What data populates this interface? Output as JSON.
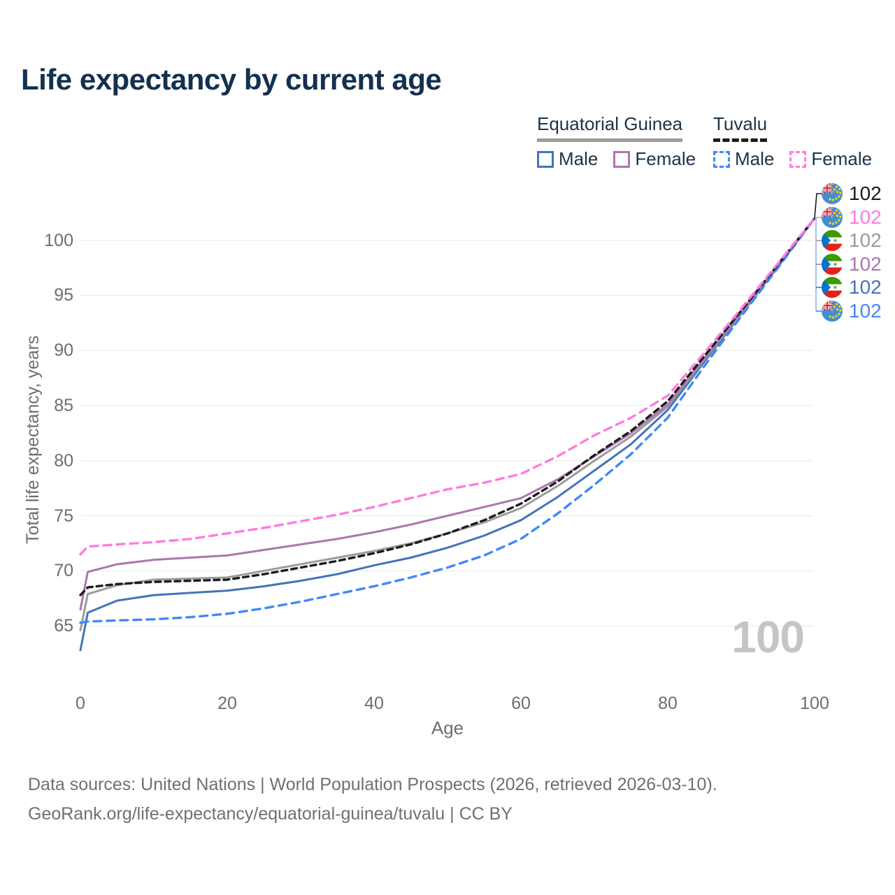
{
  "title": "Life expectancy by current age",
  "y_axis": {
    "label": "Total life expectancy, years"
  },
  "x_axis": {
    "label": "Age"
  },
  "legend": {
    "groups": [
      {
        "label": "Equatorial Guinea",
        "underline_style": "solid",
        "underline_color": "#9b9b9b",
        "items": [
          {
            "label": "Male",
            "color": "#4574b8",
            "dash": false
          },
          {
            "label": "Female",
            "color": "#ad76b0",
            "dash": false
          }
        ]
      },
      {
        "label": "Tuvalu",
        "underline_style": "dashed",
        "underline_color": "#1c1c1c",
        "items": [
          {
            "label": "Male",
            "color": "#4089f5",
            "dash": true
          },
          {
            "label": "Female",
            "color": "#ff7be0",
            "dash": true
          }
        ]
      }
    ]
  },
  "chart_data": {
    "type": "line",
    "title": "Life expectancy by current age",
    "xlabel": "Age",
    "ylabel": "Total life expectancy, years",
    "xlim": [
      0,
      100
    ],
    "ylim": [
      62,
      103
    ],
    "xticks": [
      0,
      20,
      40,
      60,
      80,
      100
    ],
    "yticks": [
      65,
      70,
      75,
      80,
      85,
      90,
      95,
      100
    ],
    "grid": "horizontal-only",
    "legend_position": "top-right",
    "x": [
      0,
      1,
      5,
      10,
      15,
      20,
      25,
      30,
      35,
      40,
      45,
      50,
      55,
      60,
      65,
      70,
      75,
      80,
      85,
      90,
      95,
      100
    ],
    "series": [
      {
        "id": "gq-male",
        "name": "Equatorial Guinea Male",
        "color": "#4574b8",
        "dash": null,
        "width": 3,
        "values": [
          62.8,
          66.2,
          67.3,
          67.8,
          68.0,
          68.2,
          68.6,
          69.1,
          69.7,
          70.5,
          71.2,
          72.1,
          73.2,
          74.6,
          76.7,
          79.1,
          81.5,
          84.6,
          89.0,
          93.3,
          97.6,
          102
        ]
      },
      {
        "id": "gq-total",
        "name": "Equatorial Guinea Total",
        "color": "#9b9b9b",
        "dash": null,
        "width": 3,
        "values": [
          64.6,
          67.9,
          68.7,
          69.2,
          69.3,
          69.4,
          70.0,
          70.6,
          71.2,
          71.8,
          72.5,
          73.4,
          74.4,
          75.7,
          77.7,
          80.0,
          82.2,
          84.9,
          89.2,
          93.4,
          97.7,
          102
        ]
      },
      {
        "id": "gq-female",
        "name": "Equatorial Guinea Female",
        "color": "#ad76b0",
        "dash": null,
        "width": 3,
        "values": [
          66.5,
          69.9,
          70.6,
          71.0,
          71.2,
          71.4,
          71.9,
          72.4,
          72.9,
          73.5,
          74.2,
          75.0,
          75.8,
          76.6,
          78.3,
          80.4,
          82.5,
          85.1,
          89.3,
          93.5,
          97.7,
          102
        ]
      },
      {
        "id": "tv-male",
        "name": "Tuvalu Male",
        "color": "#4089f5",
        "dash": "11 8",
        "width": 3.4,
        "values": [
          65.3,
          65.4,
          65.5,
          65.6,
          65.8,
          66.1,
          66.6,
          67.2,
          67.9,
          68.6,
          69.4,
          70.3,
          71.4,
          72.9,
          75.2,
          77.8,
          80.6,
          83.9,
          88.6,
          93.1,
          97.5,
          102
        ]
      },
      {
        "id": "tv-total",
        "name": "Tuvalu Total",
        "color": "#1c1c1c",
        "dash": "8 6",
        "width": 3.4,
        "values": [
          67.8,
          68.5,
          68.8,
          69.0,
          69.1,
          69.2,
          69.7,
          70.3,
          70.9,
          71.6,
          72.4,
          73.4,
          74.6,
          76.1,
          78.1,
          80.5,
          82.7,
          85.4,
          89.5,
          93.6,
          97.8,
          102
        ]
      },
      {
        "id": "tv-female",
        "name": "Tuvalu Female",
        "color": "#ff7be0",
        "dash": "11 8",
        "width": 3.4,
        "values": [
          71.5,
          72.2,
          72.4,
          72.6,
          72.9,
          73.4,
          73.9,
          74.5,
          75.1,
          75.8,
          76.6,
          77.4,
          78.0,
          78.8,
          80.4,
          82.3,
          83.9,
          85.9,
          89.8,
          93.8,
          97.9,
          102
        ]
      }
    ]
  },
  "end_labels": [
    {
      "series": "Tuvalu Total",
      "flag": "tuvalu-flag-icon",
      "flag_ref": "#flag-tv",
      "value": "102",
      "color": "#1c1c1c"
    },
    {
      "series": "Tuvalu Female",
      "flag": "tuvalu-flag-icon",
      "flag_ref": "#flag-tv",
      "value": "102",
      "color": "#ff7be0"
    },
    {
      "series": "Equatorial Guinea Total",
      "flag": "equatorial-guinea-flag-icon",
      "flag_ref": "#flag-gq",
      "value": "102",
      "color": "#9b9b9b"
    },
    {
      "series": "Equatorial Guinea Female",
      "flag": "equatorial-guinea-flag-icon",
      "flag_ref": "#flag-gq",
      "value": "102",
      "color": "#ad76b0"
    },
    {
      "series": "Equatorial Guinea Male",
      "flag": "equatorial-guinea-flag-icon",
      "flag_ref": "#flag-gq",
      "value": "102",
      "color": "#4574b8"
    },
    {
      "series": "Tuvalu Male",
      "flag": "tuvalu-flag-icon",
      "flag_ref": "#flag-tv",
      "value": "102",
      "color": "#4089f5"
    }
  ],
  "watermark": "100",
  "footer": {
    "line1": "Data sources: United Nations | World Population Prospects (2026, retrieved 2026-03-10).",
    "line2": "GeoRank.org/life-expectancy/equatorial-guinea/tuvalu | CC BY"
  }
}
